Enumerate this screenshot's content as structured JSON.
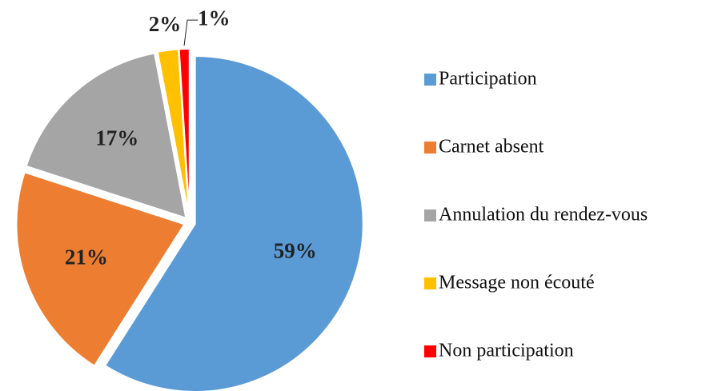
{
  "chart_data": {
    "type": "pie",
    "categories": [
      "Participation",
      "Carnet absent",
      "Annulation du rendez-vous",
      "Message non écouté",
      "Non participation"
    ],
    "values": [
      59,
      21,
      17,
      2,
      1
    ],
    "value_labels": [
      "59%",
      "21%",
      "17%",
      "2%",
      "1%"
    ],
    "colors": [
      "#5b9bd5",
      "#ed7d31",
      "#a5a5a5",
      "#ffc000",
      "#ff0000"
    ],
    "legend": "right"
  }
}
